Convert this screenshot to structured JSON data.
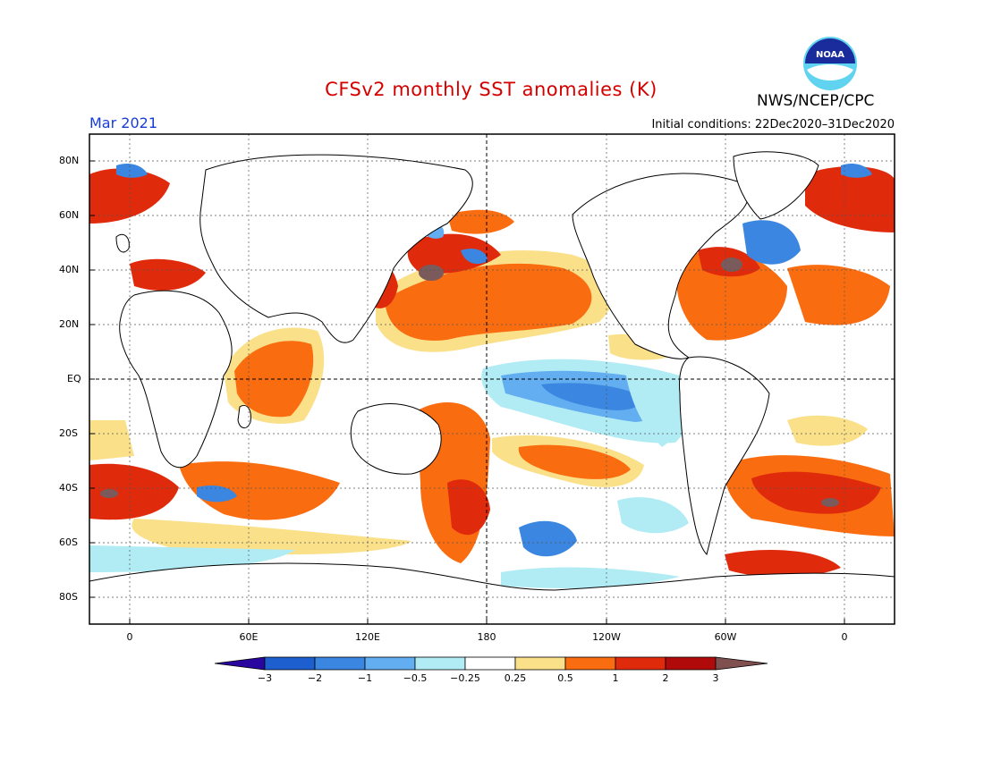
{
  "header": {
    "title": "CFSv2 monthly SST anomalies (K)",
    "month": "Mar 2021",
    "agency": "NWS/NCEP/CPC",
    "initial_conditions": "Initial conditions: 22Dec2020–31Dec2020",
    "logo_text": "NOAA"
  },
  "map": {
    "lat_labels": [
      "80N",
      "60N",
      "40N",
      "20N",
      "EQ",
      "20S",
      "40S",
      "60S",
      "80S"
    ],
    "lon_labels": [
      "0",
      "60E",
      "120E",
      "180",
      "120W",
      "60W",
      "0"
    ],
    "colorbar": {
      "labels": [
        "−3",
        "−2",
        "−1",
        "−0.5",
        "−0.25",
        "0.25",
        "0.5",
        "1",
        "2",
        "3"
      ],
      "colors": [
        "#2a06a0",
        "#1d5fcf",
        "#3a86e0",
        "#62aef0",
        "#b1ecf5",
        "#ffffff",
        "#fbe08a",
        "#fa6c10",
        "#e02a0c",
        "#b00a0a",
        "#805050"
      ]
    },
    "anomaly_colors": {
      "deep_warm": "#b00a0a",
      "warm_2": "#e02a0c",
      "warm_1": "#fa6c10",
      "warm_05": "#fbe08a",
      "cool_025": "#b1ecf5",
      "cool_05": "#62aef0",
      "cool_1": "#3a86e0",
      "extreme_warm": "#7a5a5a"
    }
  }
}
